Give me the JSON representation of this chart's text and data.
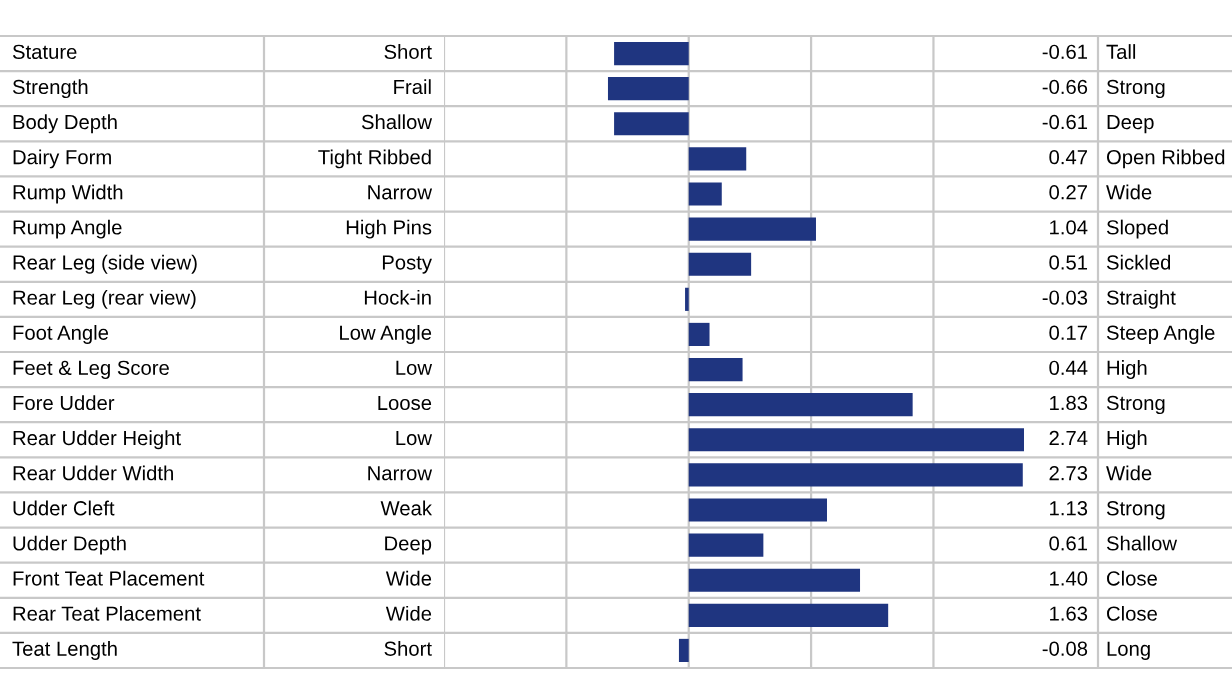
{
  "chart_data": {
    "type": "bar",
    "orientation": "horizontal",
    "categories": [
      "Stature",
      "Strength",
      "Body Depth",
      "Dairy Form",
      "Rump Width",
      "Rump Angle",
      "Rear Leg (side view)",
      "Rear Leg (rear view)",
      "Foot Angle",
      "Feet & Leg Score",
      "Fore Udder",
      "Rear Udder Height",
      "Rear Udder Width",
      "Udder Cleft",
      "Udder Depth",
      "Front Teat Placement",
      "Rear Teat Placement",
      "Teat Length"
    ],
    "values": [
      -0.61,
      -0.66,
      -0.61,
      0.47,
      0.27,
      1.04,
      0.51,
      -0.03,
      0.17,
      0.44,
      1.83,
      2.74,
      2.73,
      1.13,
      0.61,
      1.4,
      1.63,
      -0.08
    ],
    "value_labels": [
      "-0.61",
      "-0.66",
      "-0.61",
      "0.47",
      "0.27",
      "1.04",
      "0.51",
      "-0.03",
      "0.17",
      "0.44",
      "1.83",
      "2.74",
      "2.73",
      "1.13",
      "0.61",
      "1.40",
      "1.63",
      "-0.08"
    ],
    "color": "#1f3580",
    "xlim": [
      -2,
      2.74
    ],
    "xticks": [
      {
        "value": -2,
        "label": null
      },
      {
        "value": -1,
        "label": null
      },
      {
        "value": 0,
        "label": null
      },
      {
        "value": 1,
        "label": null
      },
      {
        "value": 2,
        "label": null
      }
    ],
    "grid": "x",
    "annotations": [
      "Short",
      "Frail",
      "Shallow",
      "Tight Ribbed",
      "Narrow",
      "High Pins",
      "Posty",
      "Hock-in",
      "Low Angle",
      "Low",
      "Loose",
      "Low",
      "Narrow",
      "Weak",
      "Deep",
      "Wide",
      "Wide",
      "Short",
      "Tall",
      "Strong",
      "Deep",
      "Open Ribbed",
      "Wide",
      "Sloped",
      "Sickled",
      "Straight",
      "Steep Angle",
      "High",
      "Strong",
      "High",
      "Wide",
      "Strong",
      "Shallow",
      "Close",
      "Close",
      "Long"
    ]
  }
}
